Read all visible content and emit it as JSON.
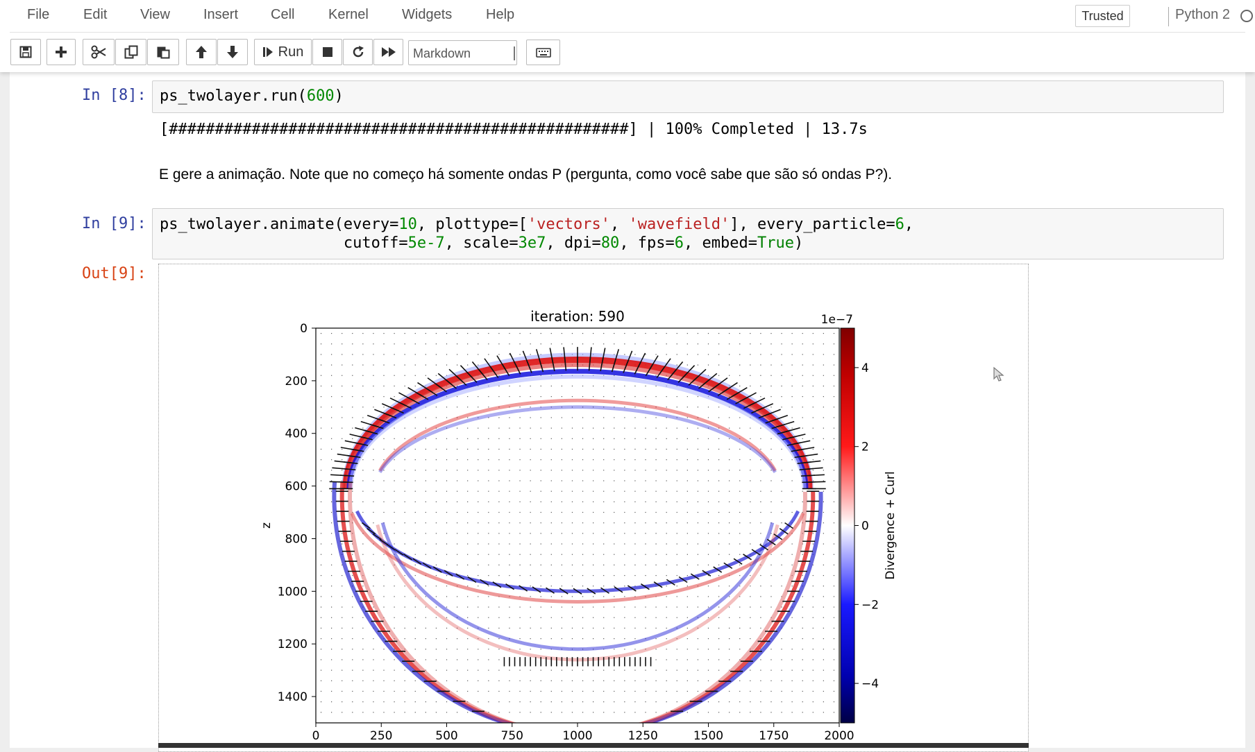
{
  "menu": {
    "items": [
      "File",
      "Edit",
      "View",
      "Insert",
      "Cell",
      "Kernel",
      "Widgets",
      "Help"
    ],
    "trusted": "Trusted",
    "kernel_name": "Python 2"
  },
  "toolbar": {
    "run_label": "Run",
    "cell_type": "Markdown",
    "icons": [
      "save-icon",
      "plus-icon",
      "cut-icon",
      "copy-icon",
      "paste-icon",
      "arrow-up-icon",
      "arrow-down-icon",
      "run-icon",
      "stop-icon",
      "restart-icon",
      "fast-forward-icon",
      "keyboard-icon"
    ]
  },
  "cells": {
    "cell8": {
      "prompt": "In [8]:",
      "code_tokens": [
        [
          "ps_twolayer.run(",
          "t"
        ],
        [
          "600",
          "n"
        ],
        [
          ")",
          "t"
        ]
      ],
      "progress": "[##################################################] | 100% Completed | 13.7s"
    },
    "markdown": "E gere a animação. Note que no começo há somente ondas P (pergunta, como você sabe que são só ondas P?).",
    "cell9": {
      "prompt": "In [9]:",
      "out_prompt": "Out[9]:",
      "line1_tokens": [
        [
          "ps_twolayer.animate(every=",
          "t"
        ],
        [
          "10",
          "n"
        ],
        [
          ", plottype=[",
          "t"
        ],
        [
          "'vectors'",
          "s"
        ],
        [
          ", ",
          "t"
        ],
        [
          "'wavefield'",
          "s"
        ],
        [
          "], every_particle=",
          "t"
        ],
        [
          "6",
          "n"
        ],
        [
          ",",
          "t"
        ]
      ],
      "line2_tokens": [
        [
          "                    cutoff=",
          "t"
        ],
        [
          "5e-7",
          "n"
        ],
        [
          ", scale=",
          "t"
        ],
        [
          "3e7",
          "n"
        ],
        [
          ", dpi=",
          "t"
        ],
        [
          "80",
          "n"
        ],
        [
          ", fps=",
          "t"
        ],
        [
          "6",
          "n"
        ],
        [
          ", embed=",
          "t"
        ],
        [
          "True",
          "k"
        ],
        [
          ")",
          "t"
        ]
      ]
    }
  },
  "chart_data": {
    "type": "heatmap",
    "title": "iteration: 590",
    "xlabel": "",
    "ylabel": "z",
    "xlim": [
      0,
      2000
    ],
    "ylim": [
      1500,
      0
    ],
    "xticks": [
      0,
      250,
      500,
      750,
      1000,
      1250,
      1500,
      1750,
      2000
    ],
    "yticks": [
      0,
      200,
      400,
      600,
      800,
      1000,
      1200,
      1400
    ],
    "colorbar": {
      "label": "Divergence + Curl",
      "scale_label": "1e−7",
      "range": [
        -5,
        5
      ],
      "ticks": [
        4,
        2,
        0,
        -2,
        -4
      ],
      "tick_labels": [
        "4",
        "2",
        "0",
        "−2",
        "−4"
      ],
      "colormap": "seismic"
    },
    "wavefronts": [
      {
        "kind": "direct-wave",
        "center_x": 1000,
        "center_z": 0,
        "radius_x": 1000,
        "radius_z": 180,
        "colors": [
          "#0000dd",
          "#dd0000"
        ]
      },
      {
        "kind": "reflected-wave-upper",
        "center_x": 1000,
        "center_z": 1080,
        "radius_x": 920,
        "radius_z": 520
      },
      {
        "kind": "interface-head-wave",
        "z": 600
      },
      {
        "kind": "transmitted-wave-lower",
        "center_x": 1000,
        "center_z": 600,
        "radius_x": 950,
        "radius_z": 850
      }
    ]
  }
}
